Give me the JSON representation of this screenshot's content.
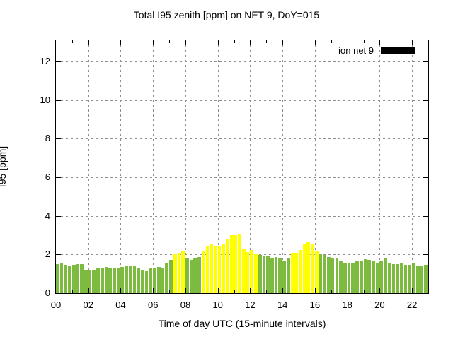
{
  "chart_data": {
    "type": "bar",
    "title": "Total I95 zenith [ppm] on NET 9, DoY=015",
    "xlabel": "Time of day UTC (15-minute intervals)",
    "ylabel": "I95 [ppm]",
    "ylim": [
      0,
      13.1
    ],
    "yticks": [
      0,
      2,
      4,
      6,
      8,
      10,
      12
    ],
    "xticks": [
      "00",
      "02",
      "04",
      "06",
      "08",
      "10",
      "12",
      "14",
      "16",
      "18",
      "20",
      "22"
    ],
    "xlim_hours": [
      0,
      23
    ],
    "interval_minutes": 15,
    "grid": "dashed-gray",
    "legend": {
      "label": "ion net 9",
      "swatch_color": "#000000",
      "position": "top-right-inside"
    },
    "bar_colors": {
      "normal": "#7CBB40",
      "highlight": "#FFFF00"
    },
    "bars": [
      {
        "t": "00:00",
        "v": 1.5,
        "c": "g"
      },
      {
        "t": "00:15",
        "v": 1.53,
        "c": "g"
      },
      {
        "t": "00:30",
        "v": 1.46,
        "c": "g"
      },
      {
        "t": "00:45",
        "v": 1.4,
        "c": "g"
      },
      {
        "t": "01:00",
        "v": 1.45,
        "c": "g"
      },
      {
        "t": "01:15",
        "v": 1.49,
        "c": "g"
      },
      {
        "t": "01:30",
        "v": 1.51,
        "c": "g"
      },
      {
        "t": "01:45",
        "v": 1.21,
        "c": "g"
      },
      {
        "t": "02:00",
        "v": 1.17,
        "c": "g"
      },
      {
        "t": "02:15",
        "v": 1.22,
        "c": "g"
      },
      {
        "t": "02:30",
        "v": 1.28,
        "c": "g"
      },
      {
        "t": "02:45",
        "v": 1.33,
        "c": "g"
      },
      {
        "t": "03:00",
        "v": 1.36,
        "c": "g"
      },
      {
        "t": "03:15",
        "v": 1.32,
        "c": "g"
      },
      {
        "t": "03:30",
        "v": 1.28,
        "c": "g"
      },
      {
        "t": "03:45",
        "v": 1.32,
        "c": "g"
      },
      {
        "t": "04:00",
        "v": 1.35,
        "c": "g"
      },
      {
        "t": "04:15",
        "v": 1.4,
        "c": "g"
      },
      {
        "t": "04:30",
        "v": 1.41,
        "c": "g"
      },
      {
        "t": "04:45",
        "v": 1.38,
        "c": "g"
      },
      {
        "t": "05:00",
        "v": 1.29,
        "c": "g"
      },
      {
        "t": "05:15",
        "v": 1.19,
        "c": "g"
      },
      {
        "t": "05:30",
        "v": 1.13,
        "c": "g"
      },
      {
        "t": "05:45",
        "v": 1.32,
        "c": "g"
      },
      {
        "t": "06:00",
        "v": 1.27,
        "c": "g"
      },
      {
        "t": "06:15",
        "v": 1.36,
        "c": "g"
      },
      {
        "t": "06:30",
        "v": 1.3,
        "c": "g"
      },
      {
        "t": "06:45",
        "v": 1.52,
        "c": "g"
      },
      {
        "t": "07:00",
        "v": 1.73,
        "c": "g"
      },
      {
        "t": "07:15",
        "v": 2.02,
        "c": "y"
      },
      {
        "t": "07:30",
        "v": 2.1,
        "c": "y"
      },
      {
        "t": "07:45",
        "v": 2.21,
        "c": "y"
      },
      {
        "t": "08:00",
        "v": 1.79,
        "c": "g"
      },
      {
        "t": "08:15",
        "v": 1.73,
        "c": "g"
      },
      {
        "t": "08:30",
        "v": 1.81,
        "c": "g"
      },
      {
        "t": "08:45",
        "v": 1.85,
        "c": "g"
      },
      {
        "t": "09:00",
        "v": 2.21,
        "c": "y"
      },
      {
        "t": "09:15",
        "v": 2.45,
        "c": "y"
      },
      {
        "t": "09:30",
        "v": 2.51,
        "c": "y"
      },
      {
        "t": "09:45",
        "v": 2.43,
        "c": "y"
      },
      {
        "t": "10:00",
        "v": 2.4,
        "c": "y"
      },
      {
        "t": "10:15",
        "v": 2.52,
        "c": "y"
      },
      {
        "t": "10:30",
        "v": 2.78,
        "c": "y"
      },
      {
        "t": "10:45",
        "v": 3.01,
        "c": "y"
      },
      {
        "t": "11:00",
        "v": 3.01,
        "c": "y"
      },
      {
        "t": "11:15",
        "v": 3.05,
        "c": "y"
      },
      {
        "t": "11:30",
        "v": 2.28,
        "c": "y"
      },
      {
        "t": "11:45",
        "v": 2.14,
        "c": "y"
      },
      {
        "t": "12:00",
        "v": 2.24,
        "c": "y"
      },
      {
        "t": "12:15",
        "v": 2.0,
        "c": "y"
      },
      {
        "t": "12:30",
        "v": 1.99,
        "c": "g"
      },
      {
        "t": "12:45",
        "v": 1.91,
        "c": "g"
      },
      {
        "t": "13:00",
        "v": 1.93,
        "c": "g"
      },
      {
        "t": "13:15",
        "v": 1.84,
        "c": "g"
      },
      {
        "t": "13:30",
        "v": 1.88,
        "c": "g"
      },
      {
        "t": "13:45",
        "v": 1.79,
        "c": "g"
      },
      {
        "t": "14:00",
        "v": 1.66,
        "c": "g"
      },
      {
        "t": "14:15",
        "v": 1.84,
        "c": "g"
      },
      {
        "t": "14:30",
        "v": 2.08,
        "c": "y"
      },
      {
        "t": "14:45",
        "v": 2.08,
        "c": "y"
      },
      {
        "t": "15:00",
        "v": 2.24,
        "c": "y"
      },
      {
        "t": "15:15",
        "v": 2.56,
        "c": "y"
      },
      {
        "t": "15:30",
        "v": 2.64,
        "c": "y"
      },
      {
        "t": "15:45",
        "v": 2.55,
        "c": "y"
      },
      {
        "t": "16:00",
        "v": 2.21,
        "c": "y"
      },
      {
        "t": "16:15",
        "v": 2.01,
        "c": "g"
      },
      {
        "t": "16:30",
        "v": 1.97,
        "c": "g"
      },
      {
        "t": "16:45",
        "v": 1.87,
        "c": "g"
      },
      {
        "t": "17:00",
        "v": 1.84,
        "c": "g"
      },
      {
        "t": "17:15",
        "v": 1.81,
        "c": "g"
      },
      {
        "t": "17:30",
        "v": 1.67,
        "c": "g"
      },
      {
        "t": "17:45",
        "v": 1.58,
        "c": "g"
      },
      {
        "t": "18:00",
        "v": 1.55,
        "c": "g"
      },
      {
        "t": "18:15",
        "v": 1.58,
        "c": "g"
      },
      {
        "t": "18:30",
        "v": 1.64,
        "c": "g"
      },
      {
        "t": "18:45",
        "v": 1.66,
        "c": "g"
      },
      {
        "t": "19:00",
        "v": 1.76,
        "c": "g"
      },
      {
        "t": "19:15",
        "v": 1.73,
        "c": "g"
      },
      {
        "t": "19:30",
        "v": 1.64,
        "c": "g"
      },
      {
        "t": "19:45",
        "v": 1.58,
        "c": "g"
      },
      {
        "t": "20:00",
        "v": 1.68,
        "c": "g"
      },
      {
        "t": "20:15",
        "v": 1.8,
        "c": "g"
      },
      {
        "t": "20:30",
        "v": 1.54,
        "c": "g"
      },
      {
        "t": "20:45",
        "v": 1.5,
        "c": "g"
      },
      {
        "t": "21:00",
        "v": 1.5,
        "c": "g"
      },
      {
        "t": "21:15",
        "v": 1.56,
        "c": "g"
      },
      {
        "t": "21:30",
        "v": 1.47,
        "c": "g"
      },
      {
        "t": "21:45",
        "v": 1.47,
        "c": "g"
      },
      {
        "t": "22:00",
        "v": 1.53,
        "c": "g"
      },
      {
        "t": "22:15",
        "v": 1.41,
        "c": "g"
      },
      {
        "t": "22:30",
        "v": 1.41,
        "c": "g"
      },
      {
        "t": "22:45",
        "v": 1.48,
        "c": "g"
      }
    ]
  }
}
